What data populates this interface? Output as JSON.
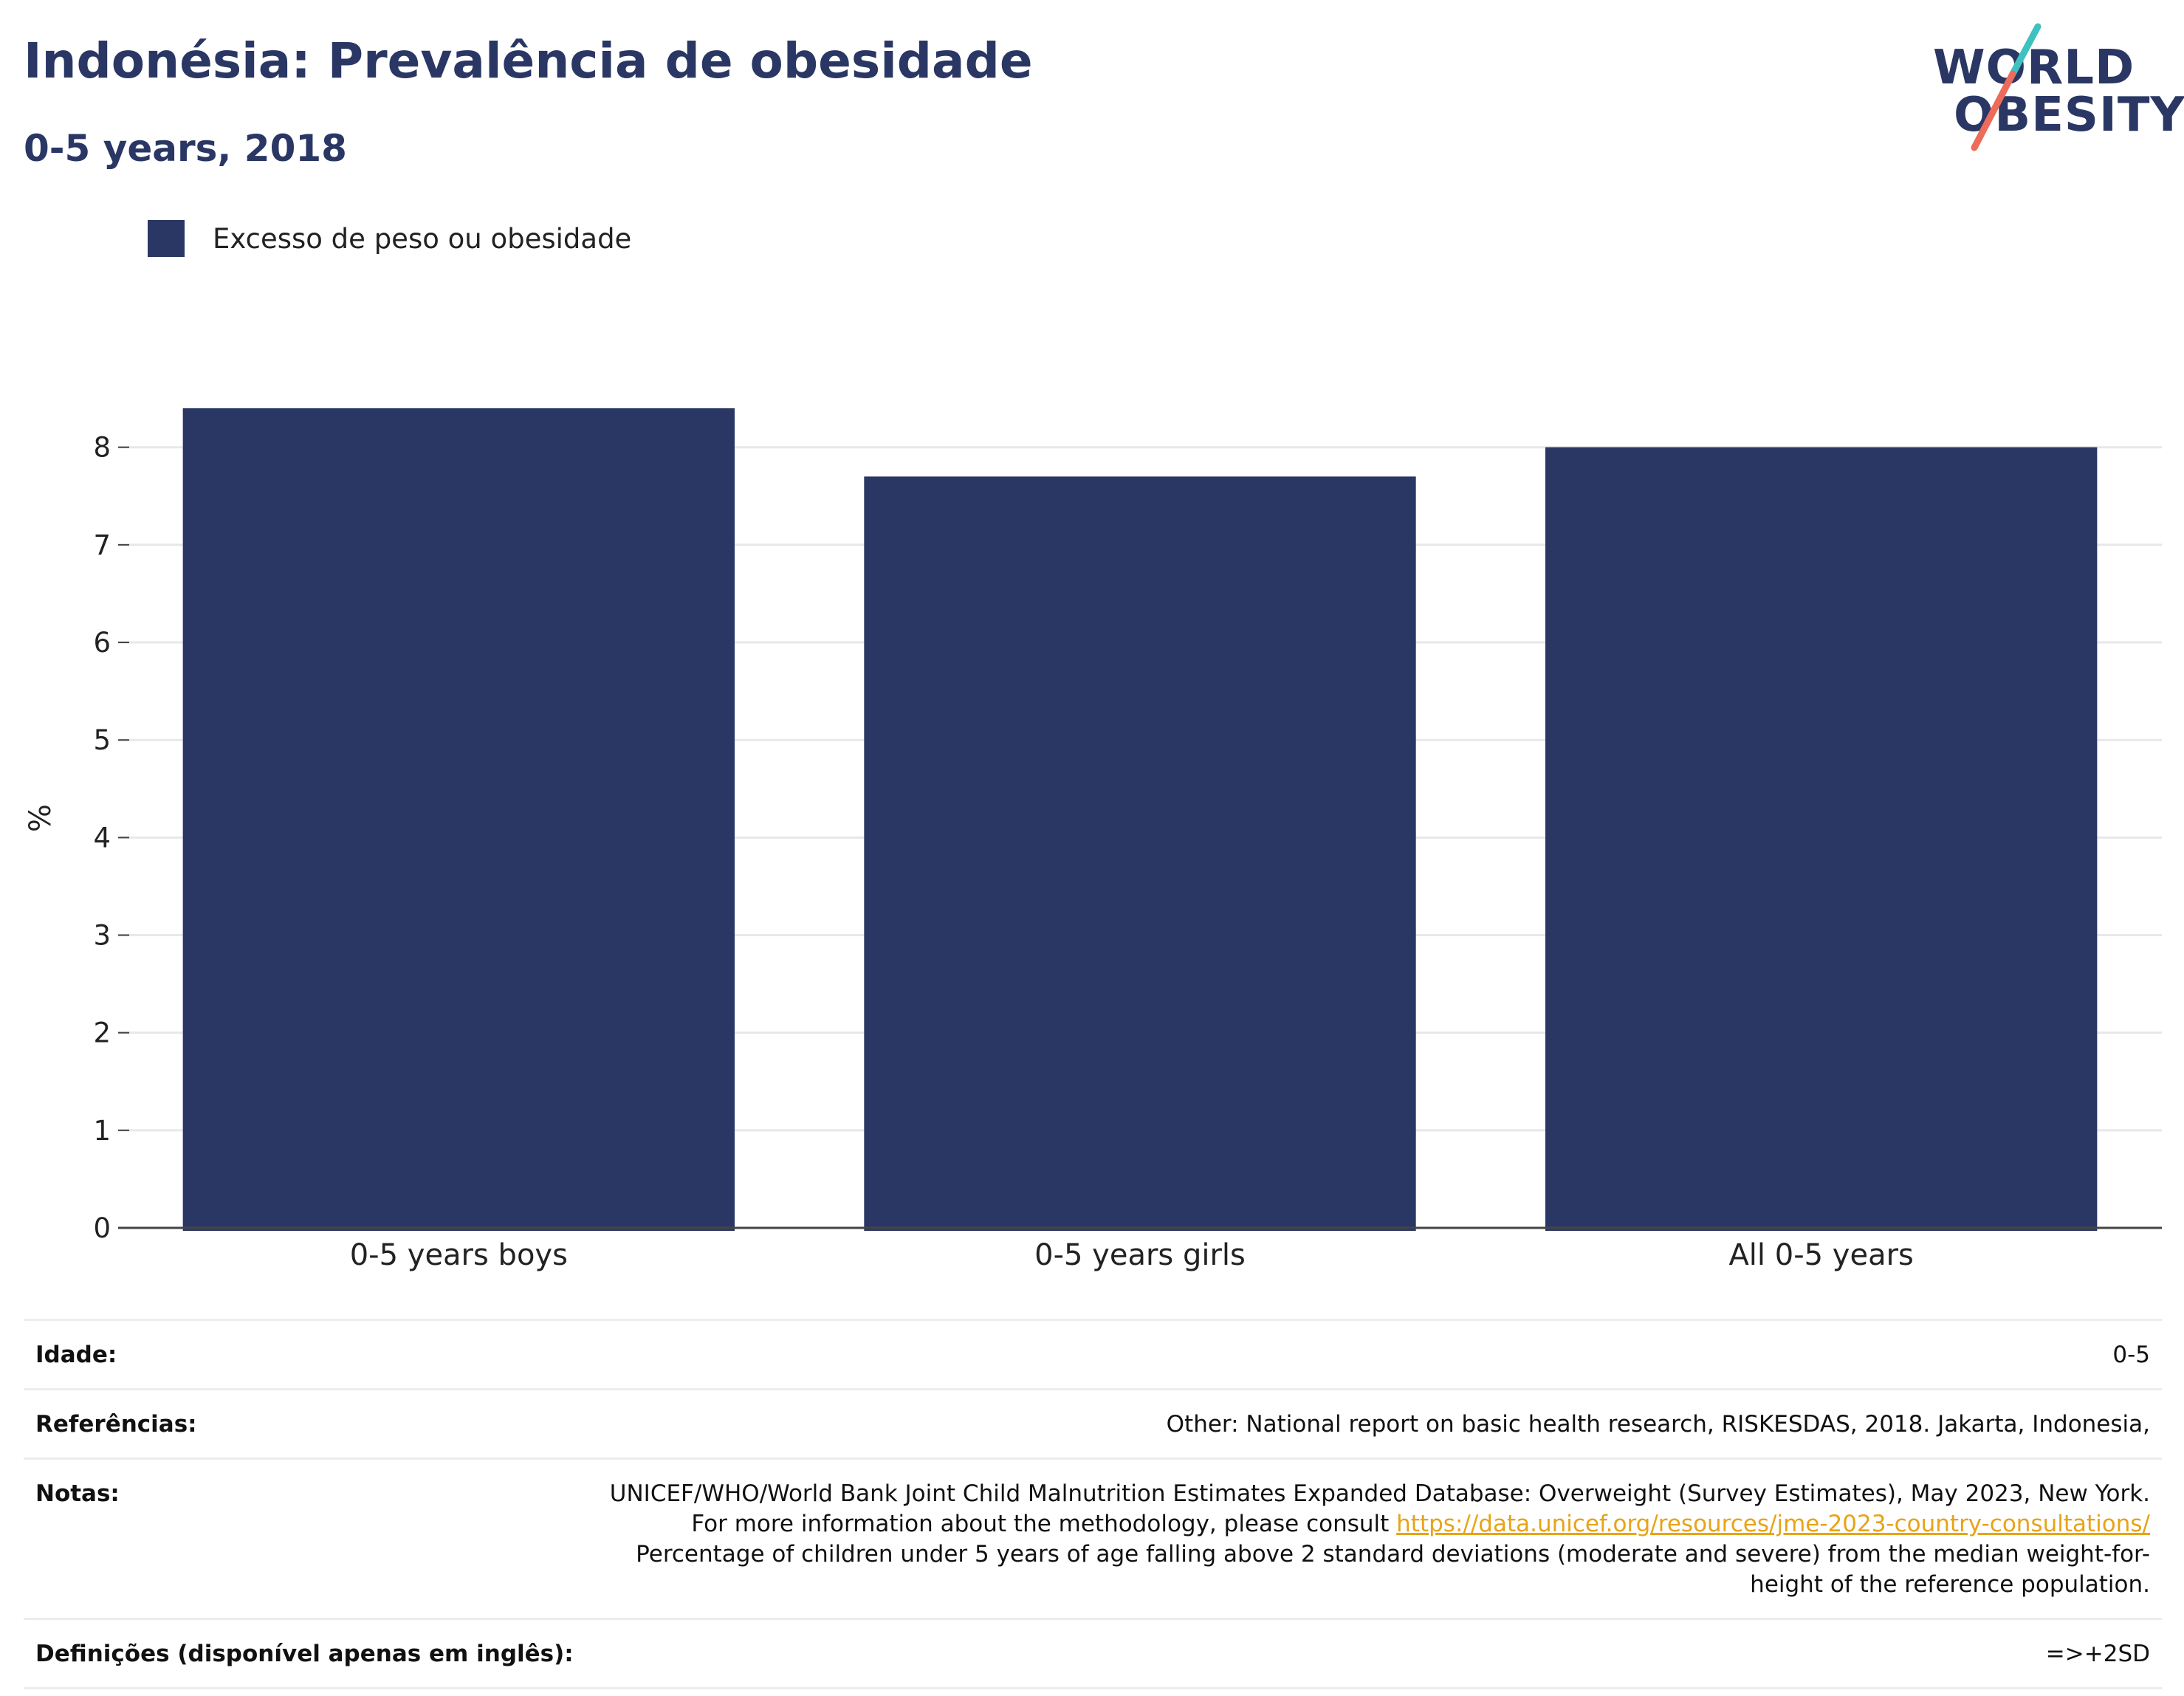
{
  "header": {
    "title": "Indonésia: Prevalência de obesidade",
    "subtitle": "0-5 years, 2018"
  },
  "logo": {
    "line1": "WORLD",
    "line2": "OBESITY",
    "colors": {
      "text": "#2a3764",
      "slash_top": "#3fc1c0",
      "slash_bottom": "#ec6b5a"
    }
  },
  "chart_data": {
    "type": "bar",
    "categories": [
      "0-5 years boys",
      "0-5 years girls",
      "All 0-5 years"
    ],
    "series": [
      {
        "name": "Excesso de peso ou obesidade",
        "values": [
          8.4,
          7.7,
          8.0
        ],
        "color": "#2a3764"
      }
    ],
    "ylabel": "%",
    "xlabel": "",
    "ylim": [
      0,
      8.8
    ],
    "yticks": [
      0,
      1,
      2,
      3,
      4,
      5,
      6,
      7,
      8
    ],
    "grid": true,
    "legend": "top-left"
  },
  "meta": {
    "rows": [
      {
        "key": "Idade:",
        "value": "0-5"
      },
      {
        "key": "Referências:",
        "value": "Other: National report on basic health research, RISKESDAS, 2018. Jakarta, Indonesia,"
      },
      {
        "key": "Notas:",
        "value_part1": "UNICEF/WHO/World Bank Joint Child Malnutrition Estimates Expanded Database: Overweight (Survey Estimates), May 2023, New York. For more information about the methodology, please consult ",
        "link": "https://data.unicef.org/resources/jme-2023-country-consultations/",
        "value_part2": " Percentage of children under 5 years of age falling above 2 standard deviations (moderate and severe) from the median weight-for-height of the reference population."
      },
      {
        "key": "Definições (disponível apenas em inglês):",
        "value": "=>+2SD"
      }
    ]
  }
}
